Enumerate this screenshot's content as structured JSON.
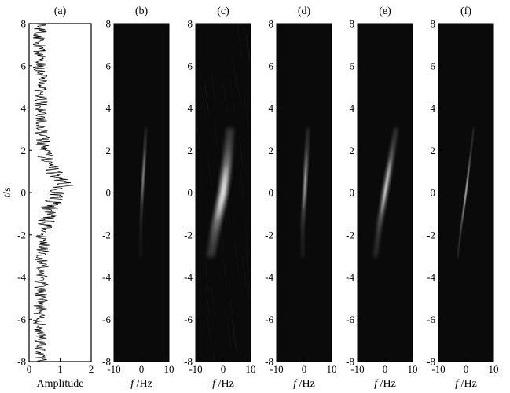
{
  "figure": {
    "ylabel_italic": "t",
    "ylabel_unit": "/s",
    "xlabel_italic": "f",
    "xlabel_unit": "/Hz"
  },
  "chart_data": [
    {
      "panel": "(a)",
      "type": "line",
      "xlabel": "Amplitude",
      "ylabel": "t/s",
      "xlim": [
        0,
        2
      ],
      "ylim": [
        -8,
        8
      ],
      "xticks": [
        0,
        1,
        2
      ],
      "yticks": [
        -8,
        -6,
        -4,
        -2,
        0,
        2,
        4,
        6,
        8
      ],
      "background": "#ffffff",
      "line_color": "#000000",
      "description_points": {
        "t": [
          -8,
          -6,
          -4,
          -2,
          -1,
          0,
          0.4,
          1,
          2,
          4,
          6,
          8
        ],
        "amplitude": [
          0.35,
          0.35,
          0.4,
          0.45,
          0.6,
          0.9,
          1.2,
          0.75,
          0.45,
          0.4,
          0.35,
          0.35
        ]
      }
    },
    {
      "panel": "(b)",
      "type": "heatmap",
      "xlabel": "f/Hz",
      "ylabel": "t/s",
      "xlim": [
        -10,
        10
      ],
      "ylim": [
        -8,
        8
      ],
      "xticks": [
        -10,
        0,
        10
      ],
      "yticks": [
        -8,
        -6,
        -4,
        -2,
        0,
        2,
        4,
        6,
        8
      ],
      "background": "#0a0a0a",
      "ridge": {
        "t": [
          -3,
          -1.5,
          0,
          1.5,
          3
        ],
        "f": [
          -0.3,
          -0.2,
          0.3,
          1.0,
          1.6
        ],
        "width_hz": 0.6,
        "peak_t": 0.8
      }
    },
    {
      "panel": "(c)",
      "type": "heatmap",
      "xlabel": "f/Hz",
      "ylabel": "t/s",
      "xlim": [
        -10,
        10
      ],
      "ylim": [
        -8,
        8
      ],
      "xticks": [
        -10,
        0,
        10
      ],
      "yticks": [
        -8,
        -6,
        -4,
        -2,
        0,
        2,
        4,
        6,
        8
      ],
      "background": "#0a0a0a",
      "ridge": {
        "t": [
          -3,
          -1.5,
          0,
          1.5,
          3
        ],
        "f": [
          -4.5,
          -2.5,
          0,
          1.5,
          2.5
        ],
        "width_hz": 3.5,
        "peak_t": 0.0
      }
    },
    {
      "panel": "(d)",
      "type": "heatmap",
      "xlabel": "f/Hz",
      "ylabel": "t/s",
      "xlim": [
        -10,
        10
      ],
      "ylim": [
        -8,
        8
      ],
      "xticks": [
        -10,
        0,
        10
      ],
      "yticks": [
        -8,
        -6,
        -4,
        -2,
        0,
        2,
        4,
        6,
        8
      ],
      "background": "#0a0a0a",
      "ridge": {
        "t": [
          -3,
          -1.5,
          0,
          1.5,
          3
        ],
        "f": [
          -0.5,
          -0.5,
          0.2,
          0.8,
          1.4
        ],
        "width_hz": 0.9,
        "peak_t": 0.5
      }
    },
    {
      "panel": "(e)",
      "type": "heatmap",
      "xlabel": "f/Hz",
      "ylabel": "t/s",
      "xlim": [
        -10,
        10
      ],
      "ylim": [
        -8,
        8
      ],
      "xticks": [
        -10,
        0,
        10
      ],
      "yticks": [
        -8,
        -6,
        -4,
        -2,
        0,
        2,
        4,
        6,
        8
      ],
      "background": "#0a0a0a",
      "ridge": {
        "t": [
          -3,
          -1.5,
          0,
          1.5,
          3
        ],
        "f": [
          -3.5,
          -2.0,
          0.0,
          2.0,
          4.0
        ],
        "width_hz": 1.6,
        "peak_t": 0.3
      }
    },
    {
      "panel": "(f)",
      "type": "heatmap",
      "xlabel": "f/Hz",
      "ylabel": "t/s",
      "xlim": [
        -10,
        10
      ],
      "ylim": [
        -8,
        8
      ],
      "xticks": [
        -10,
        0,
        10
      ],
      "yticks": [
        -8,
        -6,
        -4,
        -2,
        0,
        2,
        4,
        6,
        8
      ],
      "background": "#0a0a0a",
      "ridge": {
        "t": [
          -3,
          -1.5,
          0,
          1.5,
          3
        ],
        "f": [
          -3.0,
          -1.6,
          0.0,
          1.4,
          2.8
        ],
        "width_hz": 0.35,
        "peak_t": 0.0
      }
    }
  ]
}
